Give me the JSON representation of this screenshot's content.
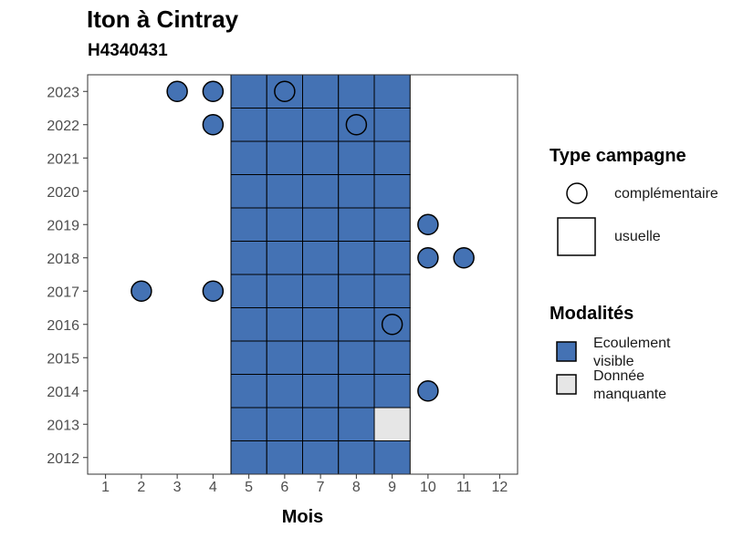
{
  "chart_data": {
    "type": "heatmap",
    "title": "Iton à Cintray",
    "subtitle": "H4340431",
    "xlabel": "Mois",
    "ylabel": "",
    "x_ticks": [
      "1",
      "2",
      "3",
      "4",
      "5",
      "6",
      "7",
      "8",
      "9",
      "10",
      "11",
      "12"
    ],
    "y_ticks": [
      "2012",
      "2013",
      "2014",
      "2015",
      "2016",
      "2017",
      "2018",
      "2019",
      "2020",
      "2021",
      "2022",
      "2023"
    ],
    "xlim": [
      0.5,
      12.5
    ],
    "ylim": [
      2011.5,
      2023.5
    ],
    "grid": false,
    "legend_position": "right",
    "colors": {
      "ecoulement_visible": "#4472b4",
      "donnee_manquante": "#e6e6e6"
    },
    "legend": {
      "type_campagne": {
        "title": "Type campagne",
        "items": [
          "complémentaire",
          "usuelle"
        ]
      },
      "modalites": {
        "title": "Modalités",
        "items": [
          {
            "key": "ecoulement_visible",
            "label_line1": "Ecoulement",
            "label_line2": "visible"
          },
          {
            "key": "donnee_manquante",
            "label_line1": "Donnée",
            "label_line2": "manquante"
          }
        ]
      }
    },
    "usuelle": [
      {
        "year": 2012,
        "month": 5,
        "modalite": "ecoulement_visible"
      },
      {
        "year": 2012,
        "month": 6,
        "modalite": "ecoulement_visible"
      },
      {
        "year": 2012,
        "month": 7,
        "modalite": "ecoulement_visible"
      },
      {
        "year": 2012,
        "month": 8,
        "modalite": "ecoulement_visible"
      },
      {
        "year": 2012,
        "month": 9,
        "modalite": "ecoulement_visible"
      },
      {
        "year": 2013,
        "month": 5,
        "modalite": "ecoulement_visible"
      },
      {
        "year": 2013,
        "month": 6,
        "modalite": "ecoulement_visible"
      },
      {
        "year": 2013,
        "month": 7,
        "modalite": "ecoulement_visible"
      },
      {
        "year": 2013,
        "month": 8,
        "modalite": "ecoulement_visible"
      },
      {
        "year": 2013,
        "month": 9,
        "modalite": "donnee_manquante"
      },
      {
        "year": 2014,
        "month": 5,
        "modalite": "ecoulement_visible"
      },
      {
        "year": 2014,
        "month": 6,
        "modalite": "ecoulement_visible"
      },
      {
        "year": 2014,
        "month": 7,
        "modalite": "ecoulement_visible"
      },
      {
        "year": 2014,
        "month": 8,
        "modalite": "ecoulement_visible"
      },
      {
        "year": 2014,
        "month": 9,
        "modalite": "ecoulement_visible"
      },
      {
        "year": 2015,
        "month": 5,
        "modalite": "ecoulement_visible"
      },
      {
        "year": 2015,
        "month": 6,
        "modalite": "ecoulement_visible"
      },
      {
        "year": 2015,
        "month": 7,
        "modalite": "ecoulement_visible"
      },
      {
        "year": 2015,
        "month": 8,
        "modalite": "ecoulement_visible"
      },
      {
        "year": 2015,
        "month": 9,
        "modalite": "ecoulement_visible"
      },
      {
        "year": 2016,
        "month": 5,
        "modalite": "ecoulement_visible"
      },
      {
        "year": 2016,
        "month": 6,
        "modalite": "ecoulement_visible"
      },
      {
        "year": 2016,
        "month": 7,
        "modalite": "ecoulement_visible"
      },
      {
        "year": 2016,
        "month": 8,
        "modalite": "ecoulement_visible"
      },
      {
        "year": 2016,
        "month": 9,
        "modalite": "ecoulement_visible"
      },
      {
        "year": 2017,
        "month": 5,
        "modalite": "ecoulement_visible"
      },
      {
        "year": 2017,
        "month": 6,
        "modalite": "ecoulement_visible"
      },
      {
        "year": 2017,
        "month": 7,
        "modalite": "ecoulement_visible"
      },
      {
        "year": 2017,
        "month": 8,
        "modalite": "ecoulement_visible"
      },
      {
        "year": 2017,
        "month": 9,
        "modalite": "ecoulement_visible"
      },
      {
        "year": 2018,
        "month": 5,
        "modalite": "ecoulement_visible"
      },
      {
        "year": 2018,
        "month": 6,
        "modalite": "ecoulement_visible"
      },
      {
        "year": 2018,
        "month": 7,
        "modalite": "ecoulement_visible"
      },
      {
        "year": 2018,
        "month": 8,
        "modalite": "ecoulement_visible"
      },
      {
        "year": 2018,
        "month": 9,
        "modalite": "ecoulement_visible"
      },
      {
        "year": 2019,
        "month": 5,
        "modalite": "ecoulement_visible"
      },
      {
        "year": 2019,
        "month": 6,
        "modalite": "ecoulement_visible"
      },
      {
        "year": 2019,
        "month": 7,
        "modalite": "ecoulement_visible"
      },
      {
        "year": 2019,
        "month": 8,
        "modalite": "ecoulement_visible"
      },
      {
        "year": 2019,
        "month": 9,
        "modalite": "ecoulement_visible"
      },
      {
        "year": 2020,
        "month": 5,
        "modalite": "ecoulement_visible"
      },
      {
        "year": 2020,
        "month": 6,
        "modalite": "ecoulement_visible"
      },
      {
        "year": 2020,
        "month": 7,
        "modalite": "ecoulement_visible"
      },
      {
        "year": 2020,
        "month": 8,
        "modalite": "ecoulement_visible"
      },
      {
        "year": 2020,
        "month": 9,
        "modalite": "ecoulement_visible"
      },
      {
        "year": 2021,
        "month": 5,
        "modalite": "ecoulement_visible"
      },
      {
        "year": 2021,
        "month": 6,
        "modalite": "ecoulement_visible"
      },
      {
        "year": 2021,
        "month": 7,
        "modalite": "ecoulement_visible"
      },
      {
        "year": 2021,
        "month": 8,
        "modalite": "ecoulement_visible"
      },
      {
        "year": 2021,
        "month": 9,
        "modalite": "ecoulement_visible"
      },
      {
        "year": 2022,
        "month": 5,
        "modalite": "ecoulement_visible"
      },
      {
        "year": 2022,
        "month": 6,
        "modalite": "ecoulement_visible"
      },
      {
        "year": 2022,
        "month": 7,
        "modalite": "ecoulement_visible"
      },
      {
        "year": 2022,
        "month": 8,
        "modalite": "ecoulement_visible"
      },
      {
        "year": 2022,
        "month": 9,
        "modalite": "ecoulement_visible"
      },
      {
        "year": 2023,
        "month": 5,
        "modalite": "ecoulement_visible"
      },
      {
        "year": 2023,
        "month": 6,
        "modalite": "ecoulement_visible"
      },
      {
        "year": 2023,
        "month": 7,
        "modalite": "ecoulement_visible"
      },
      {
        "year": 2023,
        "month": 8,
        "modalite": "ecoulement_visible"
      },
      {
        "year": 2023,
        "month": 9,
        "modalite": "ecoulement_visible"
      }
    ],
    "complementaire": [
      {
        "year": 2023,
        "month": 3,
        "modalite": "ecoulement_visible"
      },
      {
        "year": 2023,
        "month": 4,
        "modalite": "ecoulement_visible"
      },
      {
        "year": 2023,
        "month": 6,
        "modalite": "ecoulement_visible"
      },
      {
        "year": 2022,
        "month": 4,
        "modalite": "ecoulement_visible"
      },
      {
        "year": 2022,
        "month": 8,
        "modalite": "ecoulement_visible"
      },
      {
        "year": 2019,
        "month": 10,
        "modalite": "ecoulement_visible"
      },
      {
        "year": 2018,
        "month": 10,
        "modalite": "ecoulement_visible"
      },
      {
        "year": 2018,
        "month": 11,
        "modalite": "ecoulement_visible"
      },
      {
        "year": 2017,
        "month": 2,
        "modalite": "ecoulement_visible"
      },
      {
        "year": 2017,
        "month": 4,
        "modalite": "ecoulement_visible"
      },
      {
        "year": 2016,
        "month": 9,
        "modalite": "ecoulement_visible"
      },
      {
        "year": 2014,
        "month": 10,
        "modalite": "ecoulement_visible"
      }
    ]
  }
}
